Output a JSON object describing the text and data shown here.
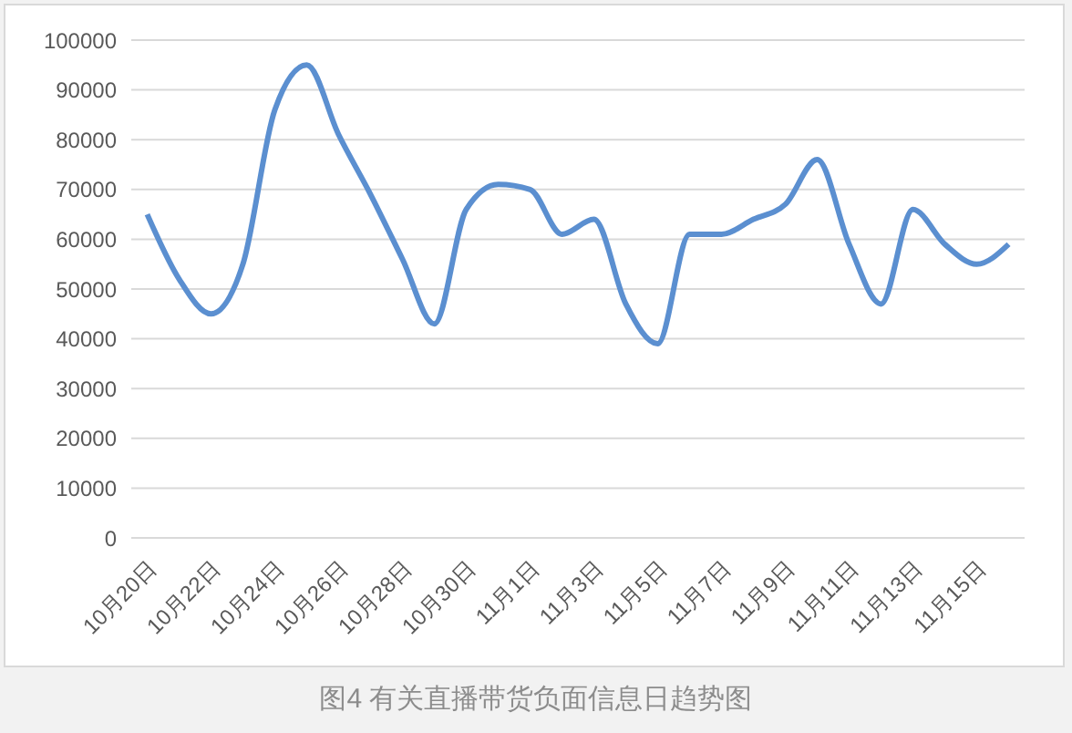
{
  "chart_data": {
    "type": "line",
    "title": "图4 有关直播带货负面信息日趋势图",
    "categories": [
      "10月20日",
      null,
      "10月22日",
      null,
      "10月24日",
      null,
      "10月26日",
      null,
      "10月28日",
      null,
      "10月30日",
      null,
      "11月1日",
      null,
      "11月3日",
      null,
      "11月5日",
      null,
      "11月7日",
      null,
      "11月9日",
      null,
      "11月11日",
      null,
      "11月13日",
      null,
      "11月15日",
      null
    ],
    "series": [
      {
        "color": "#5b8fd0",
        "values": [
          65000,
          52000,
          45000,
          55000,
          86000,
          95000,
          81000,
          69000,
          56000,
          43000,
          66000,
          71000,
          70000,
          61000,
          64000,
          47000,
          39000,
          61000,
          61000,
          64000,
          67000,
          76000,
          59000,
          47000,
          66000,
          59000,
          55000,
          59000
        ]
      }
    ],
    "ylim": [
      0,
      100000
    ],
    "yticks": [
      0,
      10000,
      20000,
      30000,
      40000,
      50000,
      60000,
      70000,
      80000,
      90000,
      100000
    ],
    "grid": "y",
    "legend": false,
    "marker": "none",
    "line_style": "solid"
  }
}
